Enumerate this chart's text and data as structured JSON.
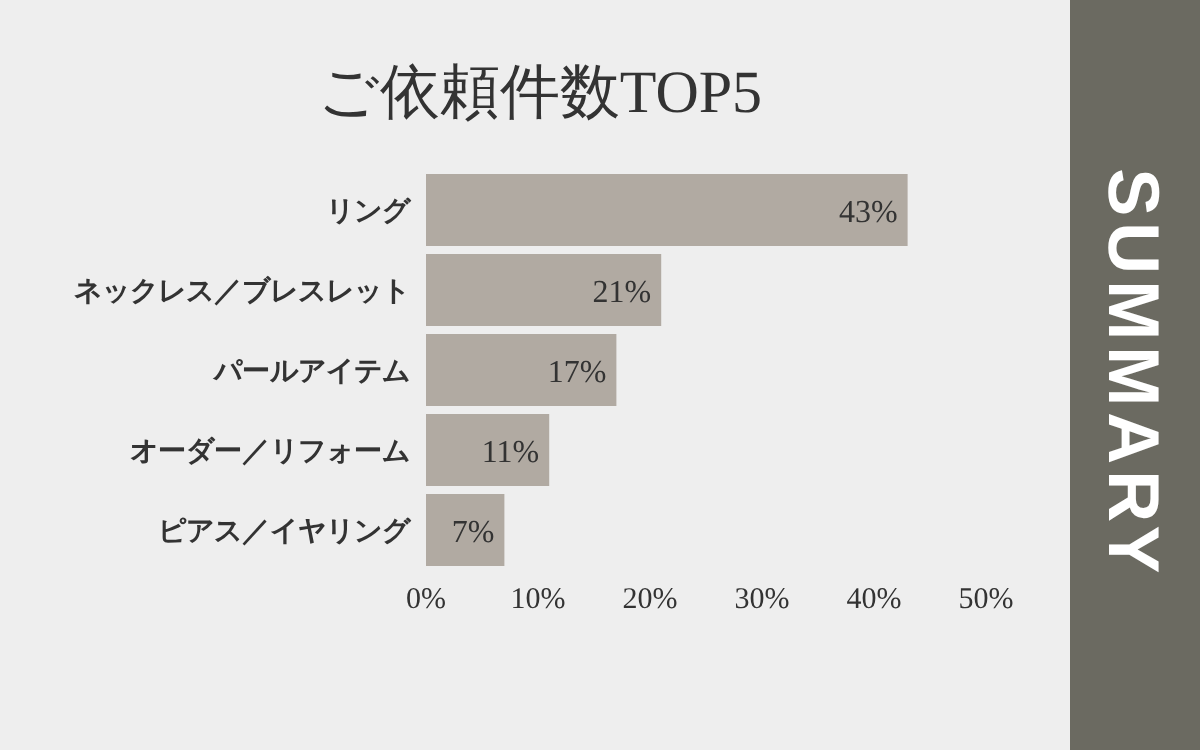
{
  "chart_data": {
    "type": "bar",
    "orientation": "horizontal",
    "title": "ご依頼件数TOP5",
    "categories": [
      "リング",
      "ネックレス／ブレスレット",
      "パールアイテム",
      "オーダー／リフォーム",
      "ピアス／イヤリング"
    ],
    "values": [
      43,
      21,
      17,
      11,
      7
    ],
    "value_labels": [
      "43%",
      "21%",
      "17%",
      "11%",
      "7%"
    ],
    "color": "#b1aaa2",
    "xlim": [
      0,
      50
    ],
    "xticks": [
      {
        "value": 0,
        "label": "0%"
      },
      {
        "value": 10,
        "label": "10%"
      },
      {
        "value": 20,
        "label": "20%"
      },
      {
        "value": 30,
        "label": "30%"
      },
      {
        "value": 40,
        "label": "40%"
      },
      {
        "value": 50,
        "label": "50%"
      }
    ],
    "grid": false,
    "annotations": [
      "SUMMARY"
    ]
  }
}
